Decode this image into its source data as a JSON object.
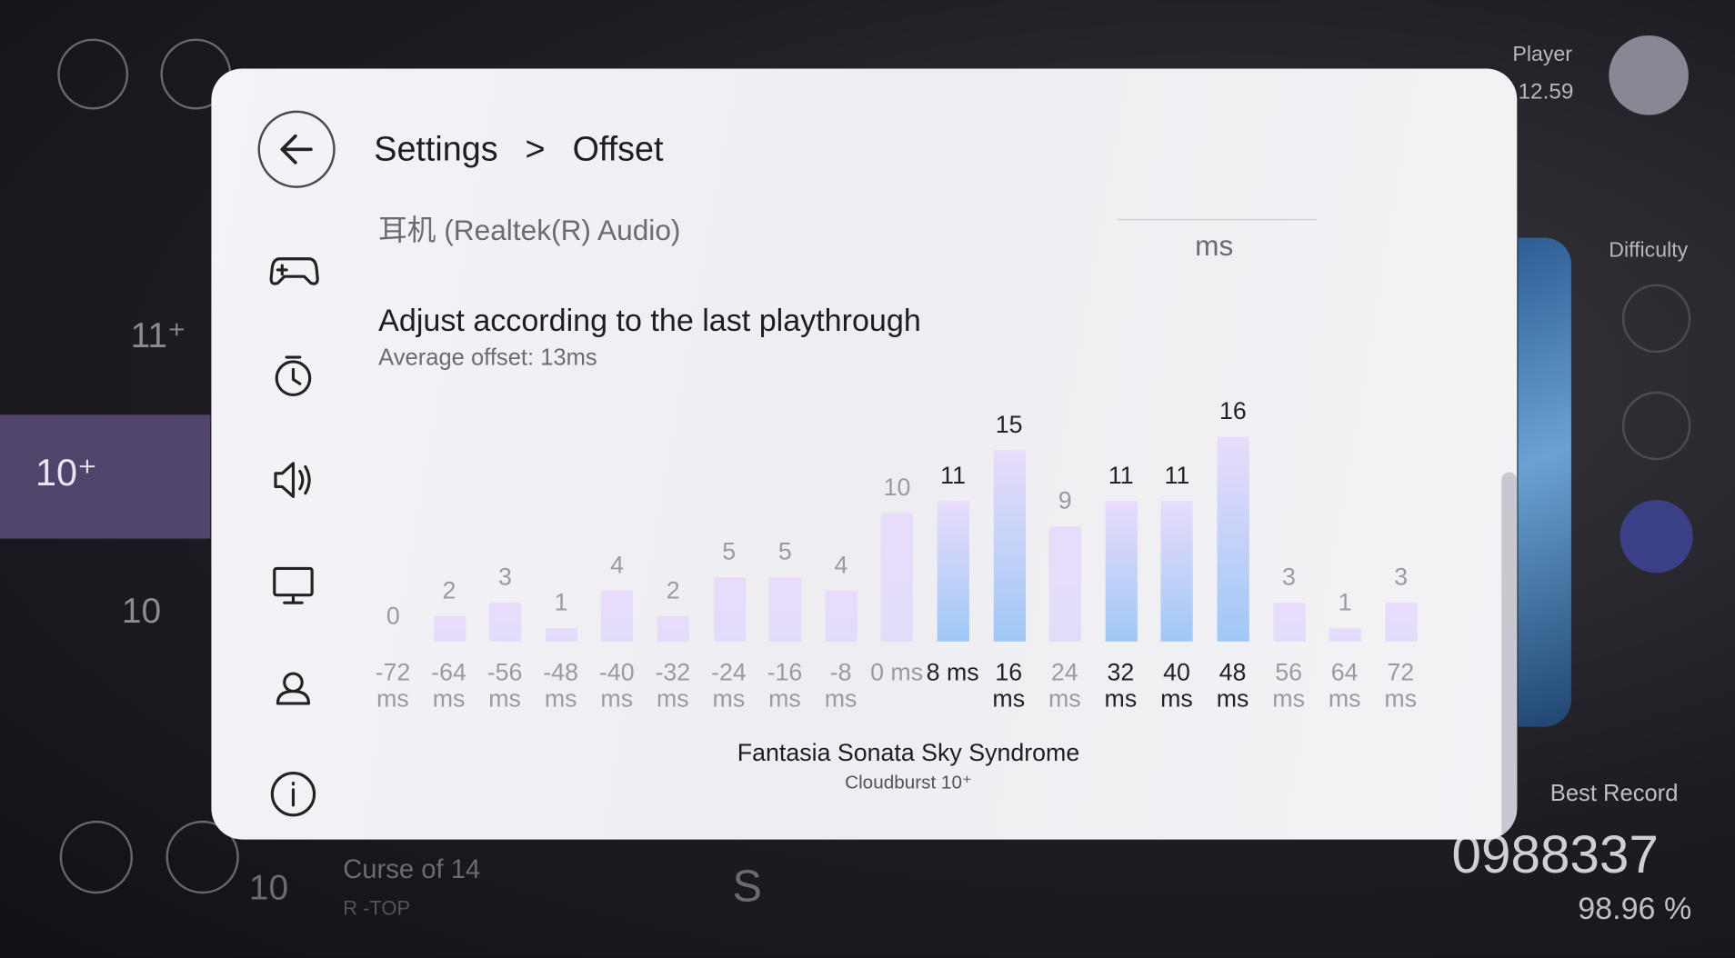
{
  "background": {
    "player_label": "Player",
    "player_rating": "12.59",
    "difficulty_label": "Difficulty",
    "best_record_label": "Best Record",
    "best_score": "0988337",
    "best_accuracy": "98.96 %",
    "rank_letter": "S",
    "list_levels": [
      "11⁺",
      "10⁺",
      "10",
      "10"
    ],
    "list_song_title": "Curse of 14",
    "list_song_artist": "R -TOP"
  },
  "header": {
    "settings": "Settings",
    "separator": ">",
    "page": "Offset"
  },
  "device": {
    "name": "耳机 (Realtek(R) Audio)",
    "unit": "ms"
  },
  "adjust": {
    "title": "Adjust according to the last playthrough",
    "average": "Average offset: 13ms"
  },
  "chart_data": {
    "type": "bar",
    "categories": [
      "-72 ms",
      "-64 ms",
      "-56 ms",
      "-48 ms",
      "-40 ms",
      "-32 ms",
      "-24 ms",
      "-16 ms",
      "-8 ms",
      "0 ms",
      "8 ms",
      "16 ms",
      "24 ms",
      "32 ms",
      "40 ms",
      "48 ms",
      "56 ms",
      "64 ms",
      "72 ms"
    ],
    "values": [
      0,
      2,
      3,
      1,
      4,
      2,
      5,
      5,
      4,
      10,
      11,
      15,
      9,
      11,
      11,
      16,
      3,
      1,
      3
    ],
    "colors": [
      "#e2dcfb",
      "#e2dcfb",
      "#e2dcfb",
      "#e2dcfb",
      "#e2dcfb",
      "#e2dcfb",
      "#e2dcfb",
      "#e2dcfb",
      "#e2dcfb",
      "#e2dcfb",
      "#9fc8f6",
      "#9fc8f6",
      "#e2dcfb",
      "#9fc8f6",
      "#9fc8f6",
      "#9fc8f6",
      "#e2dcfb",
      "#e2dcfb",
      "#e2dcfb"
    ],
    "label_colors": [
      "#9c99a6",
      "#9c99a6",
      "#9c99a6",
      "#9c99a6",
      "#9c99a6",
      "#9c99a6",
      "#9c99a6",
      "#9c99a6",
      "#9c99a6",
      "#9c99a6",
      "#232129",
      "#232129",
      "#9c99a6",
      "#232129",
      "#232129",
      "#232129",
      "#9c99a6",
      "#9c99a6",
      "#9c99a6"
    ]
  },
  "song": {
    "title": "Fantasia Sonata Sky Syndrome",
    "difficulty": "Cloudburst 10⁺"
  }
}
